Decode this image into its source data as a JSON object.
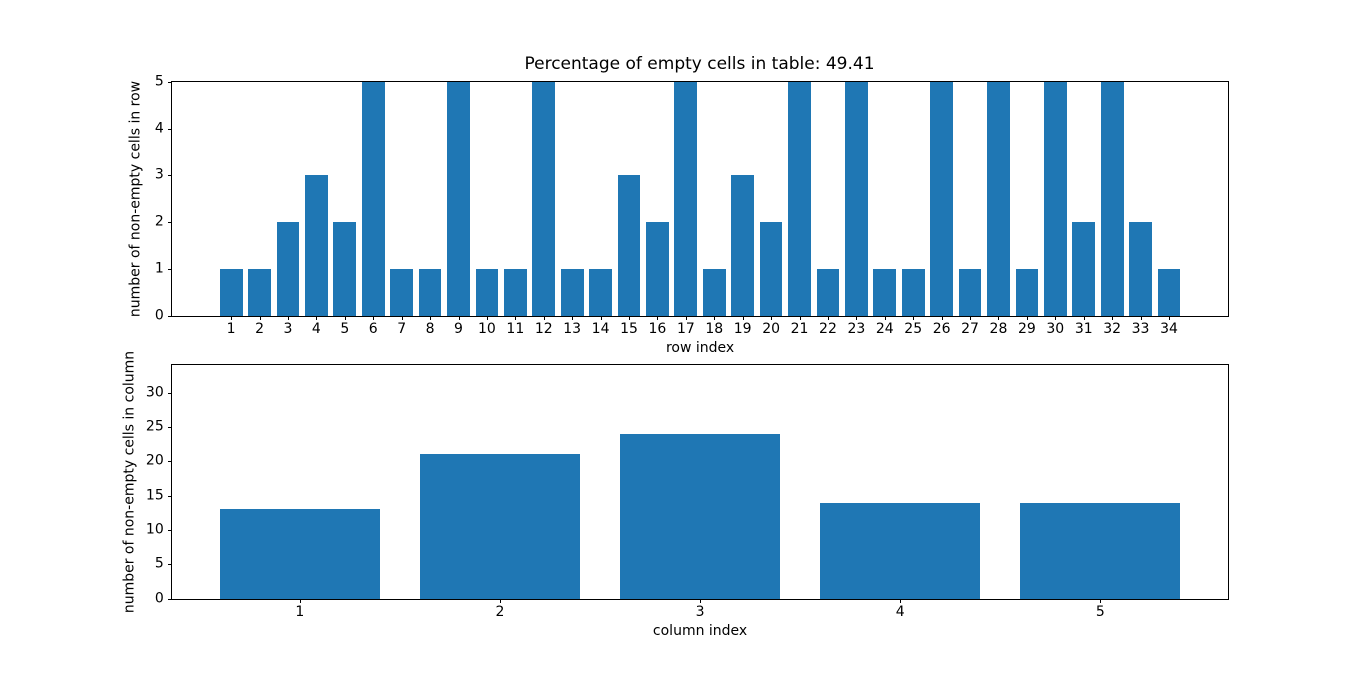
{
  "figure": {
    "background_color": "#ffffff",
    "bar_color": "#1f77b4",
    "spine_color": "#000000",
    "text_color": "#000000"
  },
  "chart_data": [
    {
      "type": "bar",
      "name": "non-empty-cells-per-row",
      "title": "Percentage of empty cells in table: 49.41",
      "xlabel": "row index",
      "ylabel": "number of non-empty cells in row",
      "categories": [
        1,
        2,
        3,
        4,
        5,
        6,
        7,
        8,
        9,
        10,
        11,
        12,
        13,
        14,
        15,
        16,
        17,
        18,
        19,
        20,
        21,
        22,
        23,
        24,
        25,
        26,
        27,
        28,
        29,
        30,
        31,
        32,
        33,
        34
      ],
      "values": [
        1,
        1,
        2,
        3,
        2,
        5,
        1,
        1,
        5,
        1,
        1,
        5,
        1,
        1,
        3,
        2,
        5,
        1,
        3,
        2,
        5,
        1,
        5,
        1,
        1,
        5,
        1,
        5,
        1,
        5,
        2,
        5,
        2,
        1
      ],
      "bar_width": 0.8,
      "bar_color": "#1f77b4",
      "xlim": [
        -1.09,
        36.09
      ],
      "ylim": [
        0,
        5
      ],
      "yticks": [
        0,
        1,
        2,
        3,
        4,
        5
      ],
      "grid": false,
      "legend": null
    },
    {
      "type": "bar",
      "name": "non-empty-cells-per-column",
      "title": "",
      "xlabel": "column index",
      "ylabel": "number of non-empty cells in column",
      "categories": [
        1,
        2,
        3,
        4,
        5
      ],
      "values": [
        13,
        21,
        24,
        14,
        14
      ],
      "bar_width": 0.8,
      "bar_color": "#1f77b4",
      "xlim": [
        0.36,
        5.64
      ],
      "ylim": [
        0,
        34
      ],
      "yticks": [
        0,
        5,
        10,
        15,
        20,
        25,
        30
      ],
      "grid": false,
      "legend": null
    }
  ]
}
